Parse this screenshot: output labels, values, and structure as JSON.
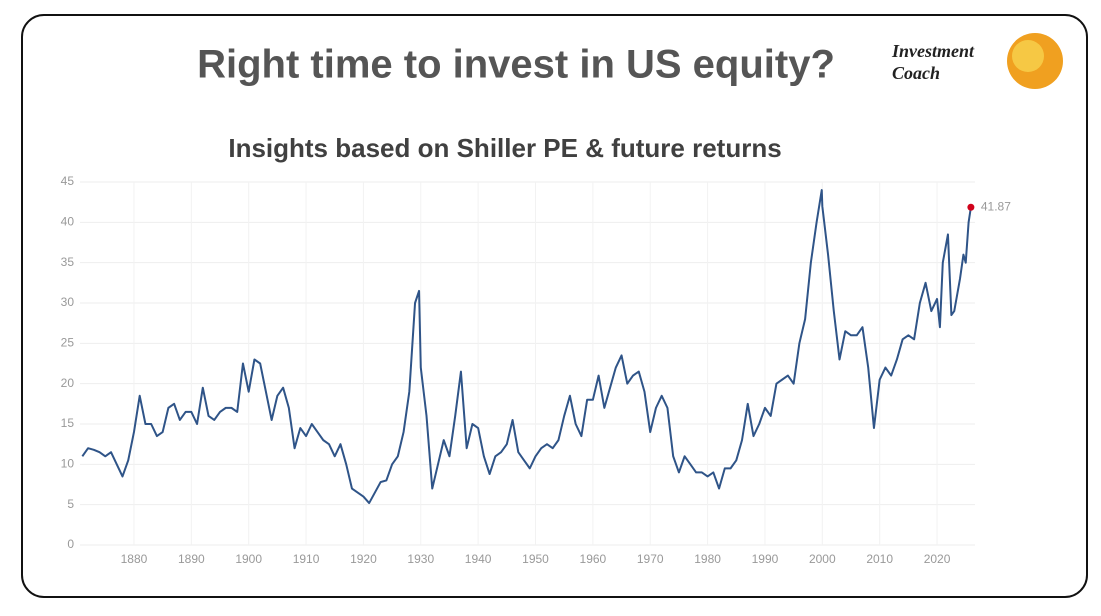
{
  "header": {
    "title": "Right time to invest in US equity?",
    "logo": [
      "Investment",
      "Coach"
    ]
  },
  "chart_data": {
    "type": "line",
    "title": "Insights based on Shiller PE & future returns",
    "x": [
      1871,
      1872,
      1873,
      1874,
      1875,
      1876,
      1877,
      1878,
      1879,
      1880,
      1881,
      1882,
      1883,
      1884,
      1885,
      1886,
      1887,
      1888,
      1889,
      1890,
      1891,
      1892,
      1893,
      1894,
      1895,
      1896,
      1897,
      1898,
      1899,
      1900,
      1901,
      1902,
      1903,
      1904,
      1905,
      1906,
      1907,
      1908,
      1909,
      1910,
      1911,
      1912,
      1913,
      1914,
      1915,
      1916,
      1917,
      1918,
      1919,
      1920,
      1921,
      1922,
      1923,
      1924,
      1925,
      1926,
      1927,
      1928,
      1929,
      1929.7,
      1930,
      1931,
      1932,
      1933,
      1934,
      1935,
      1936,
      1937,
      1938,
      1939,
      1940,
      1941,
      1942,
      1943,
      1944,
      1945,
      1946,
      1947,
      1948,
      1949,
      1950,
      1951,
      1952,
      1953,
      1954,
      1955,
      1956,
      1957,
      1958,
      1959,
      1960,
      1961,
      1962,
      1963,
      1964,
      1965,
      1966,
      1967,
      1968,
      1969,
      1970,
      1971,
      1972,
      1973,
      1974,
      1975,
      1976,
      1977,
      1978,
      1979,
      1980,
      1981,
      1982,
      1983,
      1984,
      1985,
      1986,
      1987,
      1988,
      1989,
      1990,
      1991,
      1992,
      1993,
      1994,
      1995,
      1996,
      1997,
      1998,
      1999,
      1999.9,
      2000,
      2001,
      2002,
      2003,
      2004,
      2005,
      2006,
      2007,
      2008,
      2009,
      2010,
      2011,
      2012,
      2013,
      2014,
      2015,
      2016,
      2017,
      2018,
      2019,
      2020,
      2020.5,
      2021,
      2021.9,
      2022.5,
      2023,
      2024,
      2024.6,
      2025,
      2025.5,
      2025.9
    ],
    "values": [
      11,
      12,
      11.8,
      11.5,
      11,
      11.5,
      10,
      8.5,
      10.5,
      14,
      18.5,
      15,
      15,
      13.5,
      14,
      17,
      17.5,
      15.5,
      16.5,
      16.5,
      15,
      19.5,
      16,
      15.5,
      16.5,
      17,
      17,
      16.5,
      22.5,
      19,
      23,
      22.5,
      19,
      15.5,
      18.5,
      19.5,
      17,
      12,
      14.5,
      13.5,
      15,
      14,
      13,
      12.5,
      11,
      12.5,
      10,
      7,
      6.5,
      6,
      5.2,
      6.5,
      7.8,
      8,
      10,
      11,
      14,
      19,
      30,
      31.5,
      22,
      16,
      7,
      10,
      13,
      11,
      16,
      21.5,
      12,
      15,
      14.5,
      11,
      8.8,
      11,
      11.5,
      12.5,
      15.5,
      11.5,
      10.5,
      9.5,
      11,
      12,
      12.5,
      12,
      13,
      16,
      18.5,
      15,
      13.5,
      18,
      18,
      21,
      17,
      19.5,
      22,
      23.5,
      20,
      21,
      21.5,
      19,
      14,
      17,
      18.5,
      17,
      11,
      9,
      11,
      10,
      9,
      9,
      8.5,
      9,
      7,
      9.5,
      9.5,
      10.5,
      13,
      17.5,
      13.5,
      15,
      17,
      16,
      20,
      20.5,
      21,
      20,
      25,
      28,
      35,
      40,
      44,
      42,
      36,
      29,
      23,
      26.5,
      26,
      26,
      27,
      22,
      14.5,
      20.5,
      22,
      21,
      23,
      25.5,
      26,
      25.5,
      30,
      32.5,
      29,
      30.5,
      27,
      35,
      38.5,
      28.5,
      29,
      33,
      36,
      35,
      40,
      41.87
    ],
    "color": "#2f5488",
    "highlight_color": "#d0021b",
    "xlim": [
      1870,
      2027
    ],
    "xticks": [
      1880,
      1890,
      1900,
      1910,
      1920,
      1930,
      1940,
      1950,
      1960,
      1970,
      1980,
      1990,
      2000,
      2010,
      2020
    ],
    "ylim": [
      0,
      45
    ],
    "yticks": [
      0,
      5,
      10,
      15,
      20,
      25,
      30,
      35,
      40,
      45
    ],
    "grid": true
  }
}
